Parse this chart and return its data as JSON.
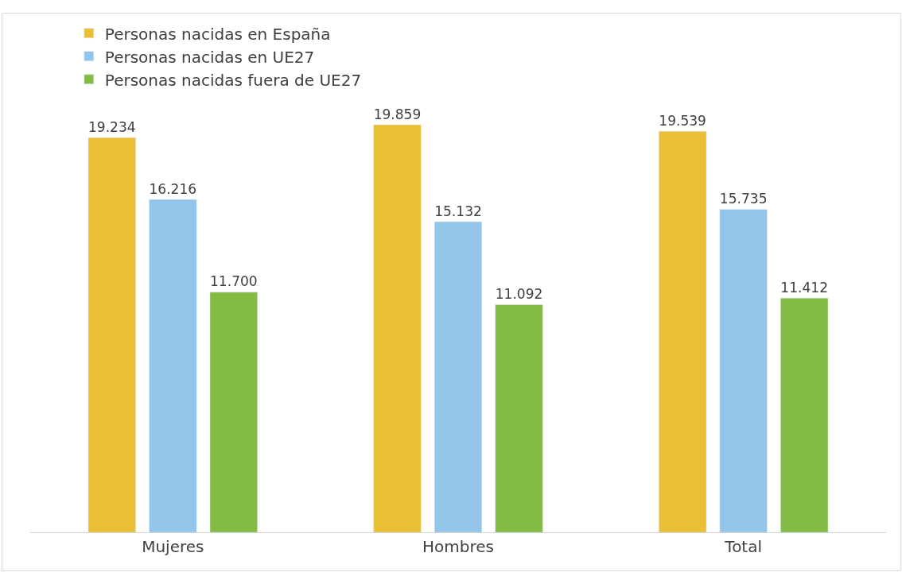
{
  "chart_data": {
    "type": "bar",
    "categories": [
      "Mujeres",
      "Hombres",
      "Total"
    ],
    "series": [
      {
        "name": "Personas nacidas en España",
        "color": "#e9bf35",
        "values": [
          19234,
          19859,
          19539
        ],
        "value_labels": [
          "19.234",
          "19.859",
          "19.539"
        ]
      },
      {
        "name": "Personas nacidas en UE27",
        "color": "#93c4ea",
        "values": [
          16216,
          15132,
          15735
        ],
        "value_labels": [
          "16.216",
          "15.132",
          "15.735"
        ]
      },
      {
        "name": "Personas nacidas fuera de UE27",
        "color": "#84bb45",
        "values": [
          11700,
          11092,
          11412
        ],
        "value_labels": [
          "11.700",
          "11.092",
          "11.412"
        ]
      }
    ],
    "legend": "top left"
  }
}
